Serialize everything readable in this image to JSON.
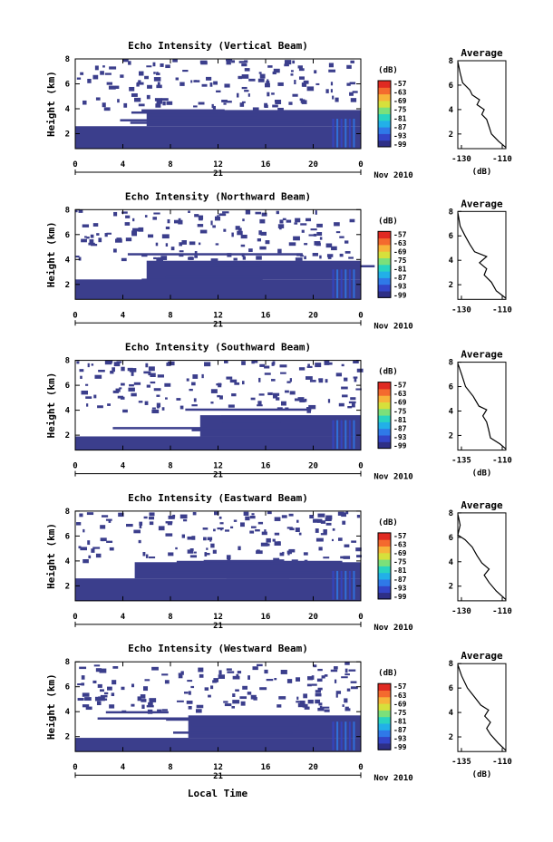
{
  "colors": {
    "echo": "#3b3e8c",
    "colorbar": [
      "#2e2f86",
      "#3345c8",
      "#2f79e8",
      "#22b0e8",
      "#29d4c0",
      "#7be07a",
      "#d6e03c",
      "#f7b43a",
      "#f46a2e",
      "#e02a22"
    ]
  },
  "shared": {
    "xticks": [
      "0",
      "4",
      "8",
      "12",
      "16",
      "20",
      "0"
    ],
    "date_day": "21",
    "date_month": "Nov 2010",
    "ylabel": "Height (km)",
    "yticks": [
      "8",
      "6",
      "4",
      "2"
    ],
    "cb_unit": "(dB)",
    "cb_ticks": [
      "-57",
      "-63",
      "-69",
      "-75",
      "-81",
      "-87",
      "-93",
      "-99"
    ],
    "avg_title": "Average",
    "avg_yticks": [
      "8",
      "6",
      "4",
      "2"
    ],
    "avg_unit": "(dB)",
    "xlabel": "Local Time"
  },
  "panels": [
    {
      "title": "Echo Intensity (Vertical Beam)",
      "avg_xticks": [
        "-130",
        "-110"
      ],
      "avg_xlim": [
        -130,
        -110
      ],
      "show_avg_unit": true
    },
    {
      "title": "Echo Intensity (Northward Beam)",
      "avg_xticks": [
        "-130",
        "-110"
      ],
      "avg_xlim": [
        -130,
        -110
      ],
      "show_avg_unit": false
    },
    {
      "title": "Echo Intensity (Southward Beam)",
      "avg_xticks": [
        "-135",
        "-110"
      ],
      "avg_xlim": [
        -135,
        -110
      ],
      "show_avg_unit": true
    },
    {
      "title": "Echo Intensity (Eastward Beam)",
      "avg_xticks": [
        "-130",
        "-110"
      ],
      "avg_xlim": [
        -130,
        -110
      ],
      "show_avg_unit": false
    },
    {
      "title": "Echo Intensity (Westward Beam)",
      "avg_xticks": [
        "-135",
        "-110"
      ],
      "avg_xlim": [
        -135,
        -110
      ],
      "show_avg_unit": true
    }
  ],
  "chart_data": [
    {
      "type": "heatmap",
      "title": "Echo Intensity (Vertical Beam)",
      "ylabel": "Height (km)",
      "x_range_hours": [
        0,
        24
      ],
      "ylim_km": [
        0.8,
        8
      ],
      "colorbar_range_db": [
        -99,
        -57
      ],
      "echo_layers": [
        {
          "x_start_hours": 0,
          "x_end_hours": 24,
          "y_bottom_km": 0.8,
          "y_top_km": 2.6
        },
        {
          "x_start_hours": 6,
          "x_end_hours": 24,
          "y_bottom_km": 2.6,
          "y_top_km": 3.9
        }
      ]
    },
    {
      "type": "line",
      "title": "Average",
      "xlabel": "(dB)",
      "xlim": [
        -130,
        -110
      ],
      "ylim": [
        0.8,
        8
      ],
      "points": [
        [
          -110,
          0.9
        ],
        [
          -113,
          1.4
        ],
        [
          -116,
          2
        ],
        [
          -117,
          2.6
        ],
        [
          -118,
          3.2
        ],
        [
          -120,
          3.6
        ],
        [
          -119,
          4.0
        ],
        [
          -122,
          4.4
        ],
        [
          -121,
          4.8
        ],
        [
          -124,
          5.2
        ],
        [
          -125,
          5.6
        ],
        [
          -128,
          6.2
        ],
        [
          -129,
          7.0
        ],
        [
          -130,
          7.9
        ]
      ]
    },
    {
      "type": "heatmap",
      "title": "Echo Intensity (Northward Beam)",
      "ylabel": "Height (km)",
      "x_range_hours": [
        0,
        24
      ],
      "ylim_km": [
        0.8,
        8
      ],
      "colorbar_range_db": [
        -99,
        -57
      ],
      "echo_layers": [
        {
          "x_start_hours": 0,
          "x_end_hours": 24,
          "y_bottom_km": 0.8,
          "y_top_km": 2.4
        },
        {
          "x_start_hours": 6,
          "x_end_hours": 24,
          "y_bottom_km": 2.4,
          "y_top_km": 3.9
        }
      ]
    },
    {
      "type": "line",
      "title": "Average",
      "xlabel": "",
      "xlim": [
        -130,
        -110
      ],
      "ylim": [
        0.8,
        8
      ],
      "points": [
        [
          -110,
          0.9
        ],
        [
          -114,
          1.5
        ],
        [
          -116,
          2.2
        ],
        [
          -119,
          2.8
        ],
        [
          -118,
          3.3
        ],
        [
          -121,
          3.8
        ],
        [
          -118,
          4.3
        ],
        [
          -123,
          4.7
        ],
        [
          -125,
          5.3
        ],
        [
          -127,
          6.0
        ],
        [
          -129,
          6.8
        ],
        [
          -130,
          7.9
        ]
      ]
    },
    {
      "type": "heatmap",
      "title": "Echo Intensity (Southward Beam)",
      "ylabel": "Height (km)",
      "x_range_hours": [
        0,
        24
      ],
      "ylim_km": [
        0.8,
        8
      ],
      "colorbar_range_db": [
        -99,
        -57
      ],
      "echo_layers": [
        {
          "x_start_hours": 0,
          "x_end_hours": 24,
          "y_bottom_km": 0.8,
          "y_top_km": 1.9
        },
        {
          "x_start_hours": 10.5,
          "x_end_hours": 24,
          "y_bottom_km": 1.9,
          "y_top_km": 3.6
        }
      ]
    },
    {
      "type": "line",
      "title": "Average",
      "xlabel": "(dB)",
      "xlim": [
        -135,
        -110
      ],
      "ylim": [
        0.8,
        8
      ],
      "points": [
        [
          -110,
          0.9
        ],
        [
          -113,
          1.3
        ],
        [
          -118,
          1.8
        ],
        [
          -119,
          2.5
        ],
        [
          -120,
          3.1
        ],
        [
          -122,
          3.6
        ],
        [
          -120,
          4.1
        ],
        [
          -124,
          4.4
        ],
        [
          -127,
          5.2
        ],
        [
          -131,
          6.0
        ],
        [
          -133,
          7.0
        ],
        [
          -135,
          7.9
        ]
      ]
    },
    {
      "type": "heatmap",
      "title": "Echo Intensity (Eastward Beam)",
      "ylabel": "Height (km)",
      "x_range_hours": [
        0,
        24
      ],
      "ylim_km": [
        0.8,
        8
      ],
      "colorbar_range_db": [
        -99,
        -57
      ],
      "echo_layers": [
        {
          "x_start_hours": 0,
          "x_end_hours": 24,
          "y_bottom_km": 0.8,
          "y_top_km": 2.6
        },
        {
          "x_start_hours": 5,
          "x_end_hours": 24,
          "y_bottom_km": 2.6,
          "y_top_km": 3.9
        }
      ]
    },
    {
      "type": "line",
      "title": "Average",
      "xlabel": "",
      "xlim": [
        -130,
        -110
      ],
      "ylim": [
        0.8,
        8
      ],
      "points": [
        [
          -110,
          0.9
        ],
        [
          -114,
          1.6
        ],
        [
          -117,
          2.3
        ],
        [
          -119,
          2.9
        ],
        [
          -117,
          3.4
        ],
        [
          -120,
          3.9
        ],
        [
          -122,
          4.5
        ],
        [
          -124,
          5.2
        ],
        [
          -127,
          5.8
        ],
        [
          -130,
          6.2
        ],
        [
          -129,
          7.0
        ],
        [
          -130,
          7.9
        ]
      ]
    },
    {
      "type": "heatmap",
      "title": "Echo Intensity (Westward Beam)",
      "ylabel": "Height (km)",
      "x_range_hours": [
        0,
        24
      ],
      "ylim_km": [
        0.8,
        8
      ],
      "colorbar_range_db": [
        -99,
        -57
      ],
      "echo_layers": [
        {
          "x_start_hours": 0,
          "x_end_hours": 24,
          "y_bottom_km": 0.8,
          "y_top_km": 1.9
        },
        {
          "x_start_hours": 9.5,
          "x_end_hours": 24,
          "y_bottom_km": 1.9,
          "y_top_km": 3.7
        }
      ]
    },
    {
      "type": "line",
      "title": "Average",
      "xlabel": "(dB)",
      "xlim": [
        -135,
        -110
      ],
      "ylim": [
        0.8,
        8
      ],
      "points": [
        [
          -110,
          0.9
        ],
        [
          -114,
          1.5
        ],
        [
          -118,
          2.2
        ],
        [
          -120,
          2.7
        ],
        [
          -118,
          3.2
        ],
        [
          -121,
          3.7
        ],
        [
          -119,
          4.2
        ],
        [
          -123,
          4.6
        ],
        [
          -126,
          5.2
        ],
        [
          -130,
          6.0
        ],
        [
          -133,
          7.0
        ],
        [
          -135,
          7.9
        ]
      ]
    }
  ]
}
